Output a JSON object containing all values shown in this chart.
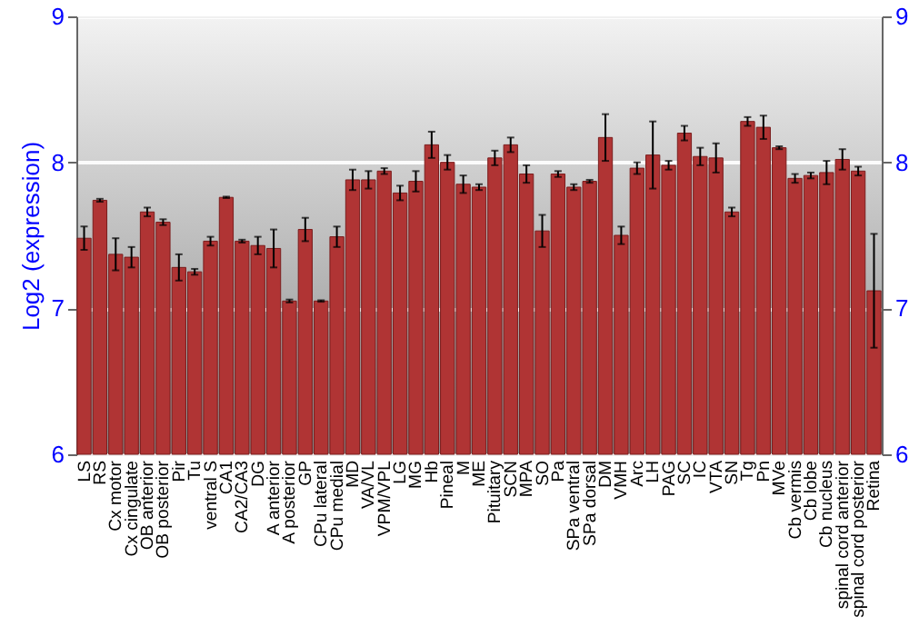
{
  "chart_data": {
    "type": "bar",
    "ylabel": "Log2 (expression)",
    "categories": [
      "LS",
      "RS",
      "Cx motor",
      "Cx cingulate",
      "OB anterior",
      "OB posterior",
      "Pir",
      "Tu",
      "ventral S",
      "CA1",
      "CA2/CA3",
      "DG",
      "A anterior",
      "A posterior",
      "GP",
      "CPu lateral",
      "CPu medial",
      "MD",
      "VA/VL",
      "VPM/VPL",
      "LG",
      "MG",
      "Hb",
      "Pineal",
      "M",
      "ME",
      "Pituitary",
      "SCN",
      "MPA",
      "SO",
      "Pa",
      "SPa ventral",
      "SPa dorsal",
      "DM",
      "VMH",
      "Arc",
      "LH",
      "PAG",
      "SC",
      "IC",
      "VTA",
      "SN",
      "Tg",
      "Pn",
      "MVe",
      "Cb vermis",
      "Cb lobe",
      "Cb nucleus",
      "spinal cord anterior",
      "spinal cord posterior",
      "Retina"
    ],
    "values": [
      7.48,
      7.74,
      7.37,
      7.35,
      7.66,
      7.59,
      7.28,
      7.25,
      7.46,
      7.76,
      7.46,
      7.43,
      7.41,
      7.05,
      7.54,
      7.05,
      7.49,
      7.88,
      7.88,
      7.94,
      7.79,
      7.87,
      8.12,
      8.0,
      7.85,
      7.83,
      8.03,
      8.12,
      7.92,
      7.53,
      7.92,
      7.83,
      7.87,
      8.17,
      7.5,
      7.96,
      8.05,
      7.98,
      8.2,
      8.04,
      8.03,
      7.66,
      8.28,
      8.24,
      8.1,
      7.89,
      7.91,
      7.93,
      8.02,
      7.94,
      7.12
    ],
    "errors": [
      0.08,
      0.01,
      0.11,
      0.07,
      0.03,
      0.02,
      0.09,
      0.02,
      0.03,
      0.005,
      0.01,
      0.06,
      0.13,
      0.01,
      0.08,
      0.005,
      0.07,
      0.07,
      0.06,
      0.02,
      0.05,
      0.07,
      0.09,
      0.05,
      0.06,
      0.02,
      0.05,
      0.05,
      0.06,
      0.11,
      0.02,
      0.02,
      0.01,
      0.16,
      0.06,
      0.04,
      0.23,
      0.03,
      0.05,
      0.06,
      0.1,
      0.03,
      0.03,
      0.08,
      0.01,
      0.03,
      0.02,
      0.08,
      0.07,
      0.03,
      0.39
    ],
    "color": "#b03434",
    "ylim": [
      6,
      9
    ],
    "yticks": [
      6,
      7,
      8,
      9
    ],
    "y2lim": [
      6,
      9
    ],
    "y2ticks": [
      6,
      7,
      8,
      9
    ],
    "grid": "y"
  }
}
